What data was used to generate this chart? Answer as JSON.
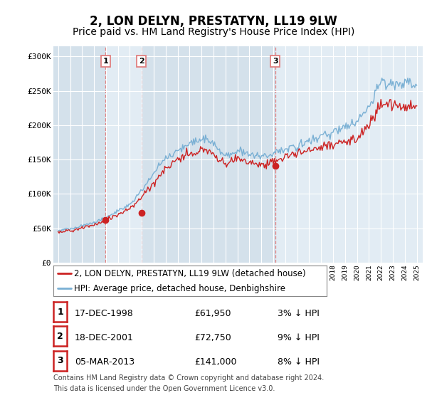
{
  "title": "2, LON DELYN, PRESTATYN, LL19 9LW",
  "subtitle": "Price paid vs. HM Land Registry's House Price Index (HPI)",
  "hpi_label": "HPI: Average price, detached house, Denbighshire",
  "property_label": "2, LON DELYN, PRESTATYN, LL19 9LW (detached house)",
  "ylabel_ticks": [
    "£0",
    "£50K",
    "£100K",
    "£150K",
    "£200K",
    "£250K",
    "£300K"
  ],
  "ytick_values": [
    0,
    50000,
    100000,
    150000,
    200000,
    250000,
    300000
  ],
  "ylim": [
    0,
    315000
  ],
  "xlim_start": 1994.6,
  "xlim_end": 2025.5,
  "transactions": [
    {
      "num": 1,
      "date": "17-DEC-1998",
      "price": 61950,
      "pct": "3%",
      "dir": "↓"
    },
    {
      "num": 2,
      "date": "18-DEC-2001",
      "price": 72750,
      "pct": "9%",
      "dir": "↓"
    },
    {
      "num": 3,
      "date": "05-MAR-2013",
      "price": 141000,
      "pct": "8%",
      "dir": "↓"
    }
  ],
  "transaction_years": [
    1998.96,
    2001.96,
    2013.17
  ],
  "transaction_prices": [
    61950,
    72750,
    141000
  ],
  "footer": "Contains HM Land Registry data © Crown copyright and database right 2024.\nThis data is licensed under the Open Government Licence v3.0.",
  "hpi_color": "#7ab0d4",
  "property_color": "#cc2222",
  "vline_color": "#e08080",
  "background_color": "#ffffff",
  "plot_bg_color": "#dce8f0",
  "grid_color": "#ffffff",
  "shade_color": "#cddce8",
  "title_fontsize": 12,
  "subtitle_fontsize": 10,
  "axis_fontsize": 8,
  "legend_fontsize": 8.5,
  "table_fontsize": 9,
  "footer_fontsize": 7
}
